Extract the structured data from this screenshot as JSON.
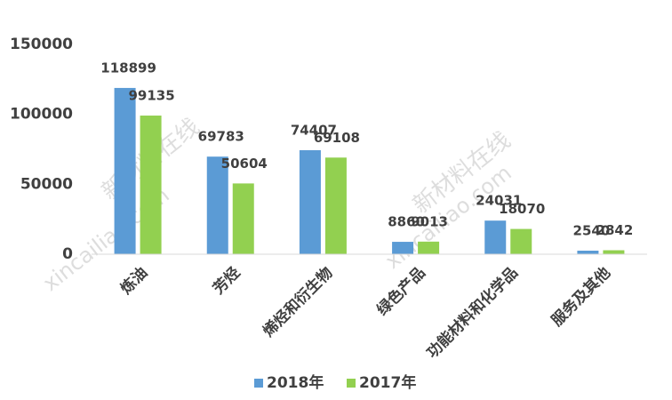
{
  "chart_data": {
    "type": "bar",
    "categories": [
      "炼油",
      "芳烃",
      "烯烃和衍生物",
      "绿色产品",
      "功能材料和化学品",
      "服务及其他"
    ],
    "series": [
      {
        "name": "2018年",
        "color": "#5b9bd5",
        "values": [
          118899,
          69783,
          74407,
          8860,
          24031,
          2540
        ]
      },
      {
        "name": "2017年",
        "color": "#92d050",
        "values": [
          99135,
          50604,
          69108,
          9013,
          18070,
          2842
        ]
      }
    ],
    "ylim": [
      0,
      150000
    ],
    "yticks": [
      0,
      50000,
      100000,
      150000
    ],
    "grid": false,
    "legend": "bottom",
    "watermarks": [
      "新材料在线",
      "xincailiao.com",
      "新材料在线",
      "xincailiao.com"
    ]
  }
}
